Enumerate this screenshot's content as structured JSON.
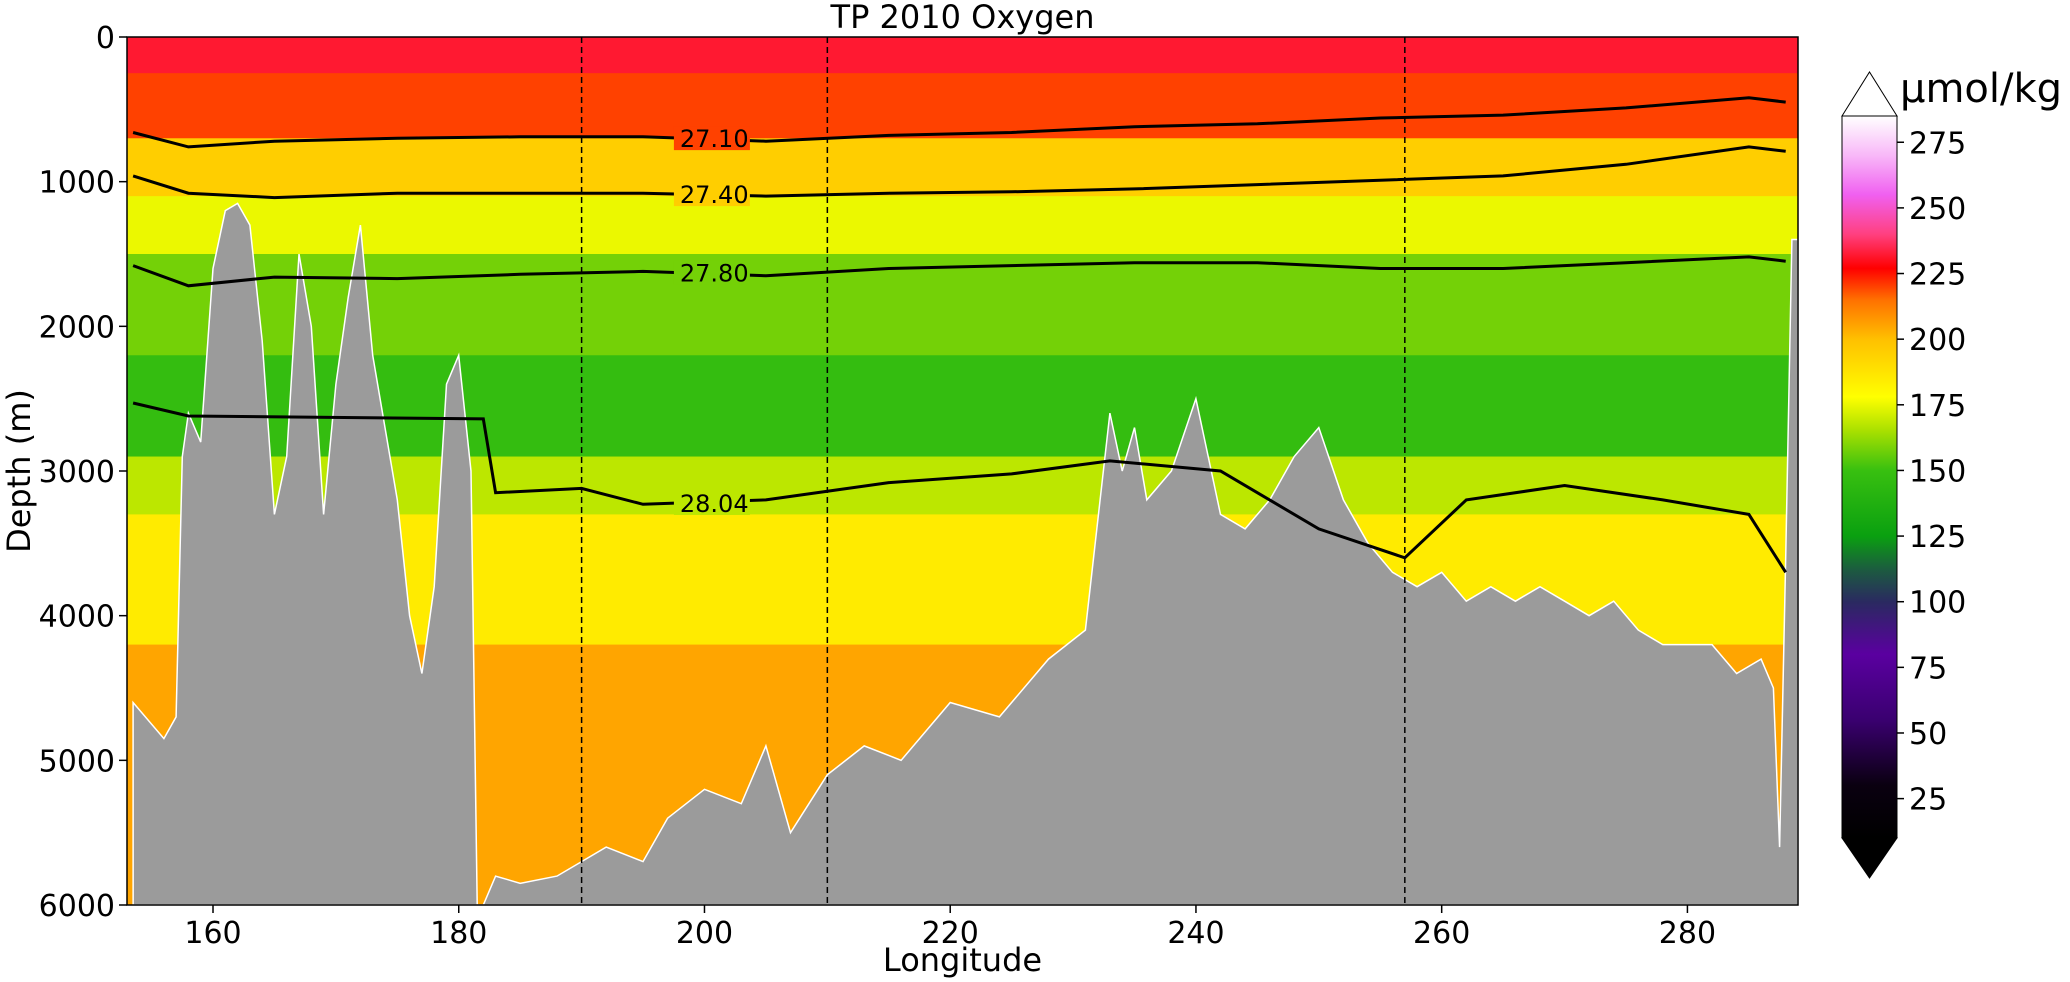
{
  "chart_data": {
    "type": "contourf-section",
    "title": "TP 2010 Oxygen",
    "xlabel": "Longitude",
    "ylabel": "Depth (m)",
    "xlim": [
      153,
      289
    ],
    "ylim": [
      6000,
      0
    ],
    "xticks": [
      160,
      180,
      200,
      220,
      240,
      260,
      280
    ],
    "yticks": [
      0,
      1000,
      2000,
      3000,
      4000,
      5000,
      6000
    ],
    "vlines": [
      190,
      210,
      257
    ],
    "colorbar": {
      "unit": "µmol/kg",
      "range": [
        10,
        285
      ],
      "ticks": [
        25,
        50,
        75,
        100,
        125,
        150,
        175,
        200,
        225,
        250,
        275
      ],
      "extend": "both",
      "stops": [
        {
          "v": 10,
          "c": "#000000"
        },
        {
          "v": 30,
          "c": "#0a0010"
        },
        {
          "v": 55,
          "c": "#3a0070"
        },
        {
          "v": 80,
          "c": "#5a00a0"
        },
        {
          "v": 100,
          "c": "#2a2a60"
        },
        {
          "v": 112,
          "c": "#1c5a40"
        },
        {
          "v": 125,
          "c": "#0aa010"
        },
        {
          "v": 150,
          "c": "#38c010"
        },
        {
          "v": 165,
          "c": "#a8e000"
        },
        {
          "v": 178,
          "c": "#ffff00"
        },
        {
          "v": 200,
          "c": "#ffc000"
        },
        {
          "v": 215,
          "c": "#ff7000"
        },
        {
          "v": 227,
          "c": "#ff0000"
        },
        {
          "v": 240,
          "c": "#ff4080"
        },
        {
          "v": 255,
          "c": "#f060f0"
        },
        {
          "v": 270,
          "c": "#f8b8f8"
        },
        {
          "v": 285,
          "c": "#ffffff"
        }
      ]
    },
    "bands": [
      {
        "from": 0,
        "to": 250,
        "value": 232
      },
      {
        "from": 250,
        "to": 700,
        "value": 220
      },
      {
        "from": 700,
        "to": 1100,
        "value": 195
      },
      {
        "from": 1100,
        "to": 1500,
        "value": 175
      },
      {
        "from": 1500,
        "to": 2200,
        "value": 158
      },
      {
        "from": 2200,
        "to": 2900,
        "value": 148
      },
      {
        "from": 2900,
        "to": 3300,
        "value": 168
      },
      {
        "from": 3300,
        "to": 4200,
        "value": 185
      },
      {
        "from": 4200,
        "to": 6000,
        "value": 205
      }
    ],
    "isopycnals": [
      {
        "label": "27.10",
        "label_x": 198,
        "points": [
          [
            153.5,
            660
          ],
          [
            158,
            760
          ],
          [
            165,
            720
          ],
          [
            175,
            700
          ],
          [
            185,
            690
          ],
          [
            195,
            690
          ],
          [
            205,
            720
          ],
          [
            215,
            680
          ],
          [
            225,
            660
          ],
          [
            235,
            620
          ],
          [
            245,
            600
          ],
          [
            255,
            560
          ],
          [
            265,
            540
          ],
          [
            275,
            490
          ],
          [
            285,
            420
          ],
          [
            288,
            450
          ]
        ]
      },
      {
        "label": "27.40",
        "label_x": 198,
        "points": [
          [
            153.5,
            960
          ],
          [
            158,
            1080
          ],
          [
            165,
            1110
          ],
          [
            175,
            1080
          ],
          [
            185,
            1080
          ],
          [
            195,
            1080
          ],
          [
            205,
            1100
          ],
          [
            215,
            1080
          ],
          [
            225,
            1070
          ],
          [
            235,
            1050
          ],
          [
            245,
            1020
          ],
          [
            255,
            990
          ],
          [
            265,
            960
          ],
          [
            275,
            880
          ],
          [
            285,
            760
          ],
          [
            288,
            790
          ]
        ]
      },
      {
        "label": "27.80",
        "label_x": 198,
        "points": [
          [
            153.5,
            1580
          ],
          [
            158,
            1720
          ],
          [
            165,
            1660
          ],
          [
            175,
            1670
          ],
          [
            185,
            1640
          ],
          [
            195,
            1620
          ],
          [
            205,
            1650
          ],
          [
            215,
            1600
          ],
          [
            225,
            1580
          ],
          [
            235,
            1560
          ],
          [
            245,
            1560
          ],
          [
            255,
            1600
          ],
          [
            265,
            1600
          ],
          [
            275,
            1560
          ],
          [
            285,
            1520
          ],
          [
            288,
            1550
          ]
        ]
      },
      {
        "label": "28.04",
        "label_x": 198,
        "points": [
          [
            153.5,
            2530
          ],
          [
            158,
            2620
          ],
          [
            182,
            2640
          ],
          [
            183,
            3150
          ],
          [
            190,
            3120
          ],
          [
            195,
            3230
          ],
          [
            205,
            3200
          ],
          [
            215,
            3080
          ],
          [
            225,
            3020
          ],
          [
            233,
            2930
          ],
          [
            242,
            3000
          ],
          [
            250,
            3400
          ],
          [
            257,
            3600
          ],
          [
            262,
            3200
          ],
          [
            270,
            3100
          ],
          [
            278,
            3200
          ],
          [
            285,
            3300
          ],
          [
            288,
            3700
          ]
        ]
      }
    ],
    "bathymetry": [
      [
        153.5,
        4600
      ],
      [
        156,
        4850
      ],
      [
        157,
        4700
      ],
      [
        157.5,
        2900
      ],
      [
        158,
        2600
      ],
      [
        159,
        2800
      ],
      [
        160,
        1600
      ],
      [
        161,
        1200
      ],
      [
        162,
        1150
      ],
      [
        163,
        1300
      ],
      [
        164,
        2100
      ],
      [
        165,
        3300
      ],
      [
        166,
        2900
      ],
      [
        167,
        1500
      ],
      [
        168,
        2000
      ],
      [
        169,
        3300
      ],
      [
        170,
        2400
      ],
      [
        171,
        1800
      ],
      [
        172,
        1300
      ],
      [
        173,
        2200
      ],
      [
        174,
        2700
      ],
      [
        175,
        3200
      ],
      [
        176,
        4000
      ],
      [
        177,
        4400
      ],
      [
        178,
        3800
      ],
      [
        179,
        2400
      ],
      [
        180,
        2200
      ],
      [
        181,
        3000
      ],
      [
        181.5,
        6000
      ],
      [
        182,
        6000
      ],
      [
        183,
        5800
      ],
      [
        185,
        5850
      ],
      [
        188,
        5800
      ],
      [
        190,
        5700
      ],
      [
        192,
        5600
      ],
      [
        195,
        5700
      ],
      [
        197,
        5400
      ],
      [
        200,
        5200
      ],
      [
        203,
        5300
      ],
      [
        205,
        4900
      ],
      [
        207,
        5500
      ],
      [
        210,
        5100
      ],
      [
        213,
        4900
      ],
      [
        216,
        5000
      ],
      [
        220,
        4600
      ],
      [
        224,
        4700
      ],
      [
        228,
        4300
      ],
      [
        231,
        4100
      ],
      [
        233,
        2600
      ],
      [
        234,
        3000
      ],
      [
        235,
        2700
      ],
      [
        236,
        3200
      ],
      [
        238,
        3000
      ],
      [
        240,
        2500
      ],
      [
        242,
        3300
      ],
      [
        244,
        3400
      ],
      [
        246,
        3200
      ],
      [
        248,
        2900
      ],
      [
        250,
        2700
      ],
      [
        252,
        3200
      ],
      [
        254,
        3500
      ],
      [
        256,
        3700
      ],
      [
        258,
        3800
      ],
      [
        260,
        3700
      ],
      [
        262,
        3900
      ],
      [
        264,
        3800
      ],
      [
        266,
        3900
      ],
      [
        268,
        3800
      ],
      [
        270,
        3900
      ],
      [
        272,
        4000
      ],
      [
        274,
        3900
      ],
      [
        276,
        4100
      ],
      [
        278,
        4200
      ],
      [
        280,
        4200
      ],
      [
        282,
        4200
      ],
      [
        284,
        4400
      ],
      [
        286,
        4300
      ],
      [
        287,
        4500
      ],
      [
        287.5,
        5600
      ],
      [
        288,
        3600
      ],
      [
        288.5,
        1400
      ],
      [
        289,
        1400
      ]
    ]
  }
}
